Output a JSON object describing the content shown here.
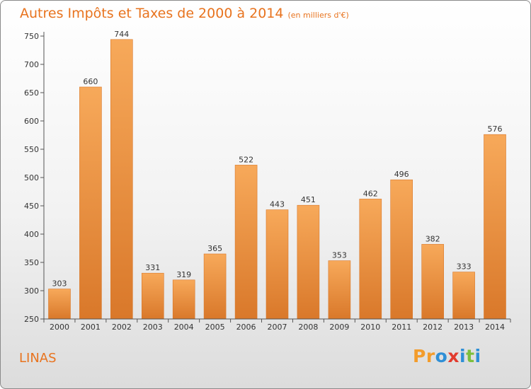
{
  "header": {
    "title": "Autres Impôts et Taxes de 2000 à 2014",
    "unit": "(en milliers d'€)"
  },
  "footer": {
    "location": "LINAS",
    "logo": "Proxiti"
  },
  "colors": {
    "accent": "#e8731e",
    "bar_light": "#f7a95a",
    "bar_dark": "#d9782a",
    "logo_letters": [
      "#f39c2b",
      "#f39c2b",
      "#2f8fd6",
      "#e23b2e",
      "#2f8fd6",
      "#7dbf3d",
      "#2f8fd6"
    ]
  },
  "chart_data": {
    "type": "bar",
    "title": "Autres Impôts et Taxes de 2000 à 2014",
    "subtitle": "(en milliers d'€)",
    "xlabel": "",
    "ylabel": "",
    "categories": [
      "2000",
      "2001",
      "2002",
      "2003",
      "2004",
      "2005",
      "2006",
      "2007",
      "2008",
      "2009",
      "2010",
      "2011",
      "2012",
      "2013",
      "2014"
    ],
    "values": [
      303,
      660,
      744,
      331,
      319,
      365,
      522,
      443,
      451,
      353,
      462,
      496,
      382,
      333,
      576
    ],
    "ylim": [
      250,
      750
    ],
    "yticks": [
      250,
      300,
      350,
      400,
      450,
      500,
      550,
      600,
      650,
      700,
      750
    ],
    "grid": false,
    "legend": "none"
  }
}
